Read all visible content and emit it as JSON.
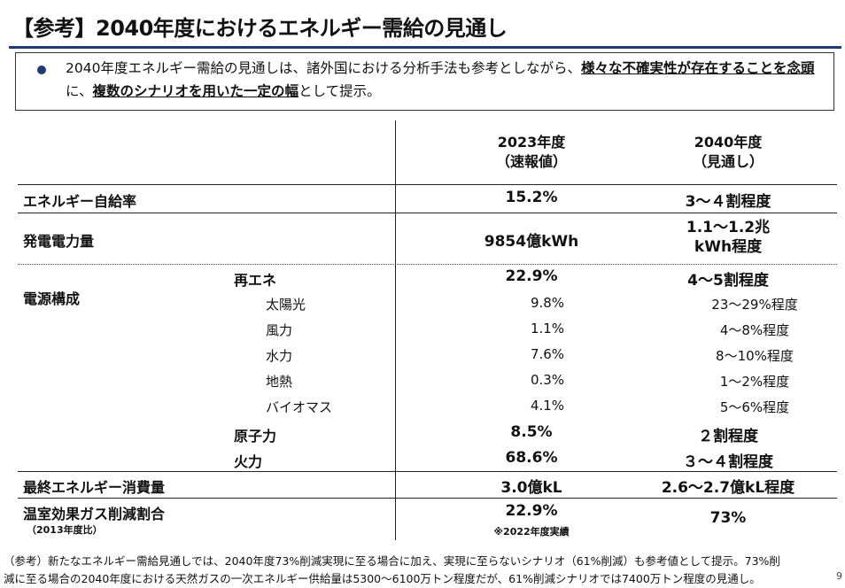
{
  "title": "【参考】2040年度におけるエネルギー需給の見通し",
  "note": {
    "part1": "2040年度エネルギー需給の見通しは、諸外国における分析手法も参考としながら、",
    "em1": "様々な不確実性が存在することを念頭",
    "part2": "に、",
    "em2": "複数のシナリオを用いた一定の幅",
    "part3": "として提示。"
  },
  "table": {
    "col_2023_line1": "2023年度",
    "col_2023_line2": "（速報値）",
    "col_2040_line1": "2040年度",
    "col_2040_line2": "（見通し）",
    "self_sufficiency": {
      "label": "エネルギー自給率",
      "v2023": "15.2%",
      "v2040": "3～４割程度"
    },
    "generation": {
      "label": "発電電力量",
      "v2023": "9854億kWh",
      "v2040_line1": "1.1～1.2兆",
      "v2040_line2": "kWh程度"
    },
    "power_mix": {
      "label": "電源構成",
      "renewable": {
        "label": "再エネ",
        "v2023": "22.9%",
        "v2040": "4～5割程度"
      },
      "solar": {
        "label": "太陽光",
        "v2023": "9.8%",
        "v2040": "23～29%程度"
      },
      "wind": {
        "label": "風力",
        "v2023": "1.1%",
        "v2040": "4～8%程度"
      },
      "hydro": {
        "label": "水力",
        "v2023": "7.6%",
        "v2040": "8～10%程度"
      },
      "geothermal": {
        "label": "地熱",
        "v2023": "0.3%",
        "v2040": "1～2%程度"
      },
      "biomass": {
        "label": "バイオマス",
        "v2023": "4.1%",
        "v2040": "5～6%程度"
      },
      "nuclear": {
        "label": "原子力",
        "v2023": "8.5%",
        "v2040": "２割程度"
      },
      "thermal": {
        "label": "火力",
        "v2023": "68.6%",
        "v2040": "３～４割程度"
      }
    },
    "final_consumption": {
      "label": "最終エネルギー消費量",
      "v2023": "3.0億kL",
      "v2040": "2.6～2.7億kL程度"
    },
    "ghg": {
      "label": "温室効果ガス削減割合",
      "sublabel": "（2013年度比）",
      "v2023": "22.9%",
      "v2023_note": "※2022年度実績",
      "v2040": "73%"
    }
  },
  "footnote": {
    "line1": "（参考）新たなエネルギー需給見通しでは、2040年度73%削減実現に至る場合に加え、実現に至らないシナリオ（61%削減）も参考値として提示。73%削",
    "line2": "減に至る場合の2040年度における天然ガスの一次エネルギー供給量は5300～6100万トン程度だが、61%削減シナリオでは7400万トン程度の見通し。"
  },
  "page_number": "9"
}
